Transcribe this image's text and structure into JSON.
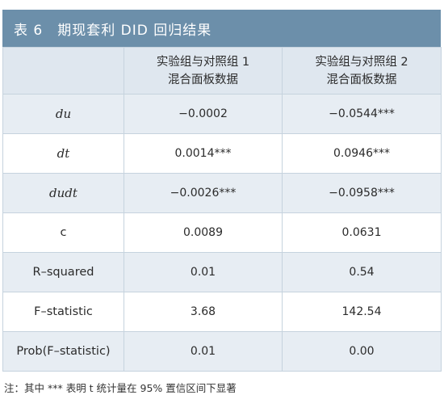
{
  "title": {
    "number": "表 6",
    "text": "期现套利 DID 回归结果"
  },
  "header": {
    "col1_line1": "实验组与对照组 1",
    "col1_line2": "混合面板数据",
    "col2_line1": "实验组与对照组 2",
    "col2_line2": "混合面板数据"
  },
  "rows": [
    {
      "var": "du",
      "v1": "−0.0002",
      "v2": "−0.0544***"
    },
    {
      "var": "dt",
      "v1": "0.0014***",
      "v2": "0.0946***"
    },
    {
      "var": "dudt",
      "v1": "−0.0026***",
      "v2": "−0.0958***"
    },
    {
      "var": "c",
      "v1": "0.0089",
      "v2": "0.0631"
    },
    {
      "var": "R–squared",
      "v1": "0.01",
      "v2": "0.54"
    },
    {
      "var": "F–statistic",
      "v1": "3.68",
      "v2": "142.54"
    },
    {
      "var": "Prob(F–statistic)",
      "v1": "0.01",
      "v2": "0.00"
    }
  ],
  "footnote": "注：其中 *** 表明 t 统计量在 95% 置信区间下显著"
}
